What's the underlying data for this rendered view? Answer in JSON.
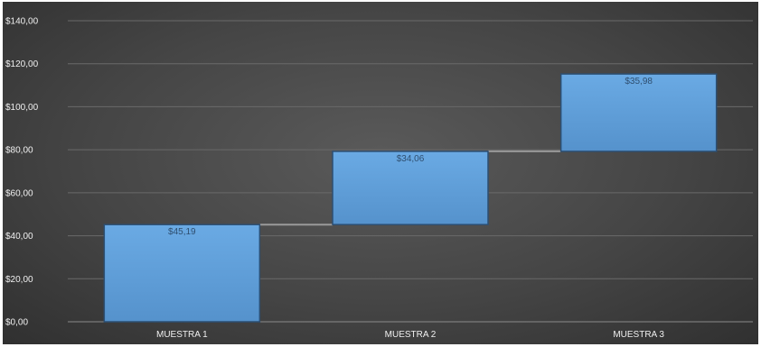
{
  "chart_data": {
    "type": "bar",
    "subtype": "waterfall",
    "categories": [
      "MUESTRA 1",
      "MUESTRA 2",
      "MUESTRA 3"
    ],
    "values": [
      45.19,
      34.06,
      35.98
    ],
    "data_labels": [
      "$45,19",
      "$34,06",
      "$35,98"
    ],
    "y_ticks": [
      "$0,00",
      "$20,00",
      "$40,00",
      "$60,00",
      "$80,00",
      "$100,00",
      "$120,00",
      "$140,00"
    ],
    "ylim": [
      0,
      140
    ],
    "grid": true,
    "legend": "none",
    "title": "",
    "xlabel": "",
    "ylabel": "",
    "colors": {
      "bar_fill": "#5b9bd5",
      "bar_top": "#6aaae4",
      "bar_stroke": "#2c4f73",
      "connector": "#9a9a9a",
      "gridline": "#6a6a6a",
      "axis_text": "#f0f0f0",
      "data_label": "#2f4f70"
    }
  }
}
